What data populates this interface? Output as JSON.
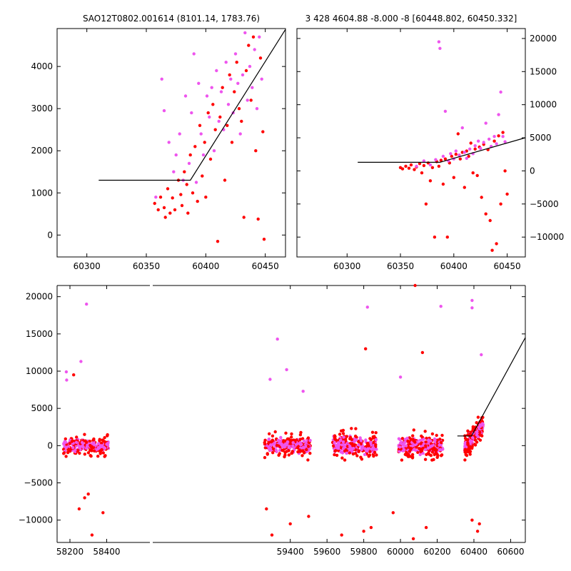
{
  "colors": {
    "red": "#ff0000",
    "magenta": "#ee55ee",
    "line": "#000000",
    "axis": "#000000"
  },
  "chart_data": [
    {
      "type": "scatter",
      "title": "SAO12T0802.001614 (8101.14, 1783.76)",
      "xlim": [
        60275,
        60467
      ],
      "ylim": [
        -520,
        4900
      ],
      "xticks": [
        60300,
        60350,
        60400,
        60450
      ],
      "yticks": [
        0,
        1000,
        2000,
        3000,
        4000
      ],
      "fit_line": {
        "x": [
          60310,
          60387,
          60467
        ],
        "y": [
          1300,
          1300,
          4880
        ]
      },
      "series": [
        {
          "color": "red",
          "points": [
            [
              60357,
              750
            ],
            [
              60360,
              600
            ],
            [
              60362,
              900
            ],
            [
              60365,
              650
            ],
            [
              60366,
              420
            ],
            [
              60368,
              1100
            ],
            [
              60370,
              520
            ],
            [
              60372,
              880
            ],
            [
              60374,
              600
            ],
            [
              60377,
              1300
            ],
            [
              60379,
              960
            ],
            [
              60380,
              700
            ],
            [
              60382,
              1500
            ],
            [
              60384,
              1200
            ],
            [
              60385,
              520
            ],
            [
              60387,
              1900
            ],
            [
              60389,
              1000
            ],
            [
              60391,
              2100
            ],
            [
              60393,
              800
            ],
            [
              60395,
              2600
            ],
            [
              60397,
              1400
            ],
            [
              60399,
              2200
            ],
            [
              60400,
              900
            ],
            [
              60402,
              2900
            ],
            [
              60404,
              1800
            ],
            [
              60406,
              3100
            ],
            [
              60408,
              2500
            ],
            [
              60410,
              -150
            ],
            [
              60412,
              2800
            ],
            [
              60414,
              3500
            ],
            [
              60416,
              1300
            ],
            [
              60418,
              2600
            ],
            [
              60420,
              3800
            ],
            [
              60422,
              2200
            ],
            [
              60424,
              3400
            ],
            [
              60426,
              4100
            ],
            [
              60428,
              3000
            ],
            [
              60430,
              2700
            ],
            [
              60432,
              420
            ],
            [
              60434,
              3900
            ],
            [
              60436,
              4500
            ],
            [
              60438,
              3200
            ],
            [
              60440,
              4700
            ],
            [
              60442,
              2000
            ],
            [
              60444,
              380
            ],
            [
              60446,
              4200
            ],
            [
              60448,
              2450
            ],
            [
              60449,
              -100
            ]
          ]
        },
        {
          "color": "magenta",
          "points": [
            [
              60358,
              900
            ],
            [
              60363,
              3700
            ],
            [
              60365,
              2950
            ],
            [
              60369,
              2200
            ],
            [
              60373,
              1500
            ],
            [
              60375,
              1900
            ],
            [
              60378,
              2400
            ],
            [
              60381,
              1300
            ],
            [
              60383,
              3300
            ],
            [
              60386,
              1700
            ],
            [
              60388,
              2900
            ],
            [
              60390,
              4300
            ],
            [
              60392,
              1250
            ],
            [
              60394,
              3600
            ],
            [
              60396,
              2400
            ],
            [
              60398,
              1900
            ],
            [
              60401,
              3300
            ],
            [
              60403,
              2800
            ],
            [
              60405,
              3500
            ],
            [
              60407,
              2000
            ],
            [
              60409,
              3900
            ],
            [
              60411,
              2700
            ],
            [
              60413,
              3400
            ],
            [
              60415,
              2500
            ],
            [
              60417,
              4100
            ],
            [
              60419,
              3100
            ],
            [
              60421,
              3700
            ],
            [
              60423,
              2900
            ],
            [
              60425,
              4300
            ],
            [
              60427,
              3600
            ],
            [
              60429,
              2400
            ],
            [
              60431,
              3800
            ],
            [
              60433,
              4800
            ],
            [
              60435,
              3200
            ],
            [
              60437,
              4000
            ],
            [
              60439,
              3500
            ],
            [
              60441,
              4400
            ],
            [
              60443,
              3000
            ],
            [
              60445,
              4700
            ],
            [
              60447,
              3700
            ]
          ]
        }
      ]
    },
    {
      "type": "scatter",
      "title": "3 428 4604.88 -8.000 -8 [60448.802, 60450.332]",
      "xlim": [
        60253,
        60467
      ],
      "ylim": [
        -13000,
        21500
      ],
      "xticks": [
        60300,
        60350,
        60400,
        60450
      ],
      "yticks": [
        -10000,
        -5000,
        0,
        5000,
        10000,
        15000,
        20000
      ],
      "fit_line": {
        "x": [
          60310,
          60387,
          60467
        ],
        "y": [
          1300,
          1300,
          5000
        ]
      },
      "series": [
        {
          "color": "red",
          "points": [
            [
              60350,
              500
            ],
            [
              60352,
              300
            ],
            [
              60355,
              700
            ],
            [
              60358,
              400
            ],
            [
              60360,
              900
            ],
            [
              60363,
              200
            ],
            [
              60365,
              600
            ],
            [
              60368,
              1100
            ],
            [
              60370,
              -300
            ],
            [
              60372,
              800
            ],
            [
              60374,
              -5000
            ],
            [
              60376,
              1200
            ],
            [
              60378,
              -1500
            ],
            [
              60380,
              500
            ],
            [
              60382,
              -10000
            ],
            [
              60384,
              1400
            ],
            [
              60386,
              700
            ],
            [
              60388,
              1600
            ],
            [
              60390,
              -2000
            ],
            [
              60392,
              1800
            ],
            [
              60394,
              -10000
            ],
            [
              60396,
              1200
            ],
            [
              60398,
              2200
            ],
            [
              60400,
              -1000
            ],
            [
              60402,
              2500
            ],
            [
              60404,
              5600
            ],
            [
              60406,
              1800
            ],
            [
              60408,
              2800
            ],
            [
              60410,
              -2500
            ],
            [
              60412,
              3000
            ],
            [
              60414,
              2200
            ],
            [
              60416,
              4200
            ],
            [
              60418,
              -300
            ],
            [
              60420,
              3300
            ],
            [
              60422,
              -700
            ],
            [
              60424,
              3600
            ],
            [
              60426,
              -4000
            ],
            [
              60428,
              4000
            ],
            [
              60430,
              -6500
            ],
            [
              60432,
              3200
            ],
            [
              60434,
              -7500
            ],
            [
              60436,
              -12000
            ],
            [
              60438,
              4500
            ],
            [
              60440,
              -11000
            ],
            [
              60442,
              5300
            ],
            [
              60444,
              -5000
            ],
            [
              60446,
              5800
            ],
            [
              60448,
              0
            ],
            [
              60450,
              -3500
            ]
          ]
        },
        {
          "color": "magenta",
          "points": [
            [
              60365,
              700
            ],
            [
              60372,
              1500
            ],
            [
              60378,
              900
            ],
            [
              60383,
              1700
            ],
            [
              60386,
              19500
            ],
            [
              60387,
              18500
            ],
            [
              60390,
              2200
            ],
            [
              60392,
              9000
            ],
            [
              60395,
              1500
            ],
            [
              60397,
              2600
            ],
            [
              60400,
              1800
            ],
            [
              60402,
              3000
            ],
            [
              60405,
              2400
            ],
            [
              60408,
              6500
            ],
            [
              60410,
              2800
            ],
            [
              60412,
              1900
            ],
            [
              60415,
              3300
            ],
            [
              60418,
              2600
            ],
            [
              60420,
              3800
            ],
            [
              60423,
              4500
            ],
            [
              60425,
              3400
            ],
            [
              60428,
              4300
            ],
            [
              60430,
              7200
            ],
            [
              60433,
              4800
            ],
            [
              60435,
              3700
            ],
            [
              60438,
              5200
            ],
            [
              60440,
              4100
            ],
            [
              60442,
              8500
            ],
            [
              60444,
              11900
            ],
            [
              60446,
              5200
            ],
            [
              60448,
              4400
            ]
          ]
        }
      ]
    },
    {
      "type": "scatter",
      "title": "",
      "xlim": [
        58130,
        60680
      ],
      "ylim": [
        -13000,
        21500
      ],
      "xticks": [
        58200,
        58400,
        59400,
        59600,
        59800,
        60000,
        60200,
        60400,
        60600
      ],
      "yticks": [
        -10000,
        -5000,
        0,
        5000,
        10000,
        15000,
        20000
      ],
      "fit_line": {
        "x": [
          60310,
          60387,
          60680
        ],
        "y": [
          1300,
          1300,
          14500
        ]
      },
      "clusters": [
        {
          "x_range": [
            58165,
            58410
          ],
          "spread": 2200
        },
        {
          "x_range": [
            59260,
            59510
          ],
          "spread": 2600
        },
        {
          "x_range": [
            59630,
            59870
          ],
          "spread": 3200
        },
        {
          "x_range": [
            59990,
            60230
          ],
          "spread": 3200
        },
        {
          "x_range": [
            60350,
            60450
          ],
          "spread": 2400
        }
      ],
      "outliers": [
        {
          "color": "magenta",
          "points": [
            [
              58180,
              9900
            ],
            [
              58182,
              8800
            ],
            [
              58260,
              11300
            ],
            [
              58290,
              19000
            ],
            [
              59290,
              8900
            ],
            [
              59330,
              14300
            ],
            [
              59380,
              10200
            ],
            [
              59470,
              7300
            ],
            [
              59820,
              18600
            ],
            [
              60000,
              9200
            ],
            [
              60220,
              18700
            ],
            [
              60390,
              19500
            ],
            [
              60390,
              18500
            ],
            [
              60440,
              12200
            ]
          ]
        },
        {
          "color": "red",
          "points": [
            [
              58220,
              9500
            ],
            [
              58250,
              -8500
            ],
            [
              58280,
              -7000
            ],
            [
              58300,
              -6500
            ],
            [
              58320,
              -12000
            ],
            [
              58380,
              -9000
            ],
            [
              59270,
              -8500
            ],
            [
              59300,
              -12000
            ],
            [
              59400,
              -10500
            ],
            [
              59500,
              -9500
            ],
            [
              59680,
              -12000
            ],
            [
              59810,
              13000
            ],
            [
              59800,
              -11500
            ],
            [
              59840,
              -11000
            ],
            [
              59960,
              -9000
            ],
            [
              60070,
              -12500
            ],
            [
              60080,
              21500
            ],
            [
              60120,
              12500
            ],
            [
              60140,
              -11000
            ],
            [
              60390,
              -10000
            ],
            [
              60420,
              -11500
            ],
            [
              60430,
              -10500
            ]
          ]
        }
      ]
    }
  ]
}
